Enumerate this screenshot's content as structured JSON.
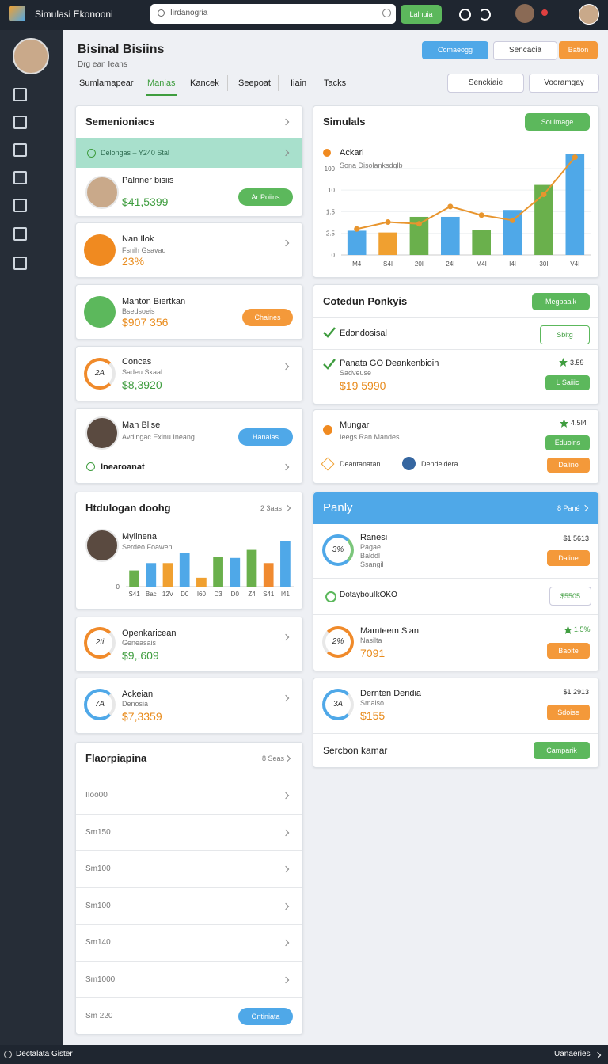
{
  "topbar": {
    "title": "Simulasi Ekonooni",
    "search": "Iirdanogria",
    "button": "Lalnuia"
  },
  "header": {
    "title": "Bisinal Bisiins",
    "subtitle": "Drg ean Ieans",
    "buttons": [
      "Comaeogg",
      "Sencacia",
      "Bation"
    ]
  },
  "tabs": [
    "Sumlamapear",
    "Manias",
    "Kancek",
    "Seepoat",
    "Iiain",
    "Tacks"
  ],
  "filters": [
    "Senckiaie",
    "Vooramgay"
  ],
  "left": [
    {
      "title": "Semenioniacs",
      "banner": "Delongas – Y240 Stal",
      "name": "Palnner bisiis",
      "amount": "$41,5399",
      "button": "Ar Poiins"
    },
    {
      "name": "Nan Ilok",
      "sub": "Fsnih Gsavad",
      "amount": "23%"
    },
    {
      "name": "Manton Biertkan",
      "sub": "Bsedsoeis",
      "amount": "$907 356",
      "button": "Chaines"
    },
    {
      "name": "Concas",
      "sub": "Sadeu Skaal",
      "amount": "$8,3920",
      "ring": "2A"
    },
    {
      "name": "Man Blise",
      "sub": "Avdingac Exinu Ineang",
      "button": "Hanaias",
      "footer": "Inearoanat"
    },
    {
      "title": "Htdulogan doohg",
      "meta": "2 3aas",
      "name": "Myllnena",
      "sub": "Serdeo Foawen",
      "chart": {
        "type": "bar",
        "categories": [
          "S41",
          "Bac",
          "12V",
          "D0",
          "I60",
          "D3",
          "D0",
          "Z4",
          "S41",
          "I41"
        ],
        "values": [
          22,
          32,
          32,
          46,
          12,
          40,
          39,
          50,
          32,
          62
        ],
        "colors": [
          "#6ab04c",
          "#4fa8e8",
          "#f0a030",
          "#4fa8e8",
          "#f0a030",
          "#6ab04c",
          "#4fa8e8",
          "#6ab04c",
          "#f08a30",
          "#4fa8e8"
        ],
        "ylim": [
          0,
          70
        ],
        "yticks": [
          0
        ]
      }
    },
    {
      "name": "Openkaricean",
      "sub": "Geneasais",
      "amount": "$9,.609",
      "ring": "2ti"
    },
    {
      "name": "Ackeian",
      "sub": "Denosia",
      "amount": "$7,3359",
      "ring": "7A"
    },
    {
      "title": "Flaorpiapina",
      "meta": "8 Seas",
      "rows": [
        "IIoo00",
        "Sm150",
        "Sm100",
        "Sm100",
        "Sm140",
        "Sm1000",
        "Sm 220"
      ],
      "button": "Ontiniata"
    }
  ],
  "right": [
    {
      "title": "Simulals",
      "button": "Soulmage",
      "chart": {
        "type": "bar-line",
        "title": "Ackari",
        "subtitle": "Sona Disolanksdglb",
        "categories": [
          "M4",
          "S4I",
          "20I",
          "24I",
          "M4I",
          "I4I",
          "30I",
          "V4I"
        ],
        "values": [
          28,
          26,
          44,
          44,
          29,
          52,
          81,
          117
        ],
        "colors": [
          "#4fa8e8",
          "#f0a030",
          "#6ab04c",
          "#4fa8e8",
          "#6ab04c",
          "#4fa8e8",
          "#6ab04c",
          "#4fa8e8"
        ],
        "line": [
          30,
          38,
          36,
          56,
          46,
          40,
          70,
          113
        ],
        "line_color": "#e8952e",
        "ylim": [
          0,
          120
        ],
        "yticks": [
          0,
          {
            "value": 25,
            "label": "2.5"
          },
          {
            "value": 50,
            "label": "1.5"
          },
          {
            "value": 75,
            "label": "10"
          },
          100
        ]
      }
    },
    {
      "title": "Cotedun Ponkyis",
      "button": "Megpaaik",
      "row": "Edondosisal",
      "row_button": "Sbitg",
      "name": "Panata GO Deankenbioin",
      "sub": "Sadveuse",
      "amount": "$19 5990",
      "rating": "3.59",
      "item_button": "L Saiiic"
    },
    {
      "name": "Mungar",
      "sub": "Ieegs Ran Mandes",
      "rating": "4.5I4",
      "buttons": [
        "Eduoins",
        "Dalino"
      ],
      "links": [
        "Deantanatan",
        "Dendeidera"
      ]
    },
    {
      "title": "Panly",
      "meta": "8 Pané",
      "items": [
        {
          "name": "Ranesi",
          "sub": [
            "Pagae",
            "Balddl",
            "Ssangil"
          ],
          "ring": "3%",
          "price": "$1 5613",
          "button": "Daline"
        },
        {
          "name": "DotaybouIkOKO",
          "price": "$5505"
        },
        {
          "name": "Mamteem Sian",
          "sub": [
            "Nasilta"
          ],
          "amount": "7091",
          "ring": "2%",
          "rating": "1.5%",
          "button": "Baoite"
        }
      ]
    },
    {
      "name": "Dernten Deridia",
      "sub": "Smalso",
      "amount": "$155",
      "ring": "3A",
      "price": "$1 2913",
      "button": "Sdoise",
      "footer": "Sercbon kamar",
      "footer_button": "Camparik"
    }
  ],
  "footer": {
    "left": "Dectalata Gister",
    "right": "Uanaeries"
  }
}
